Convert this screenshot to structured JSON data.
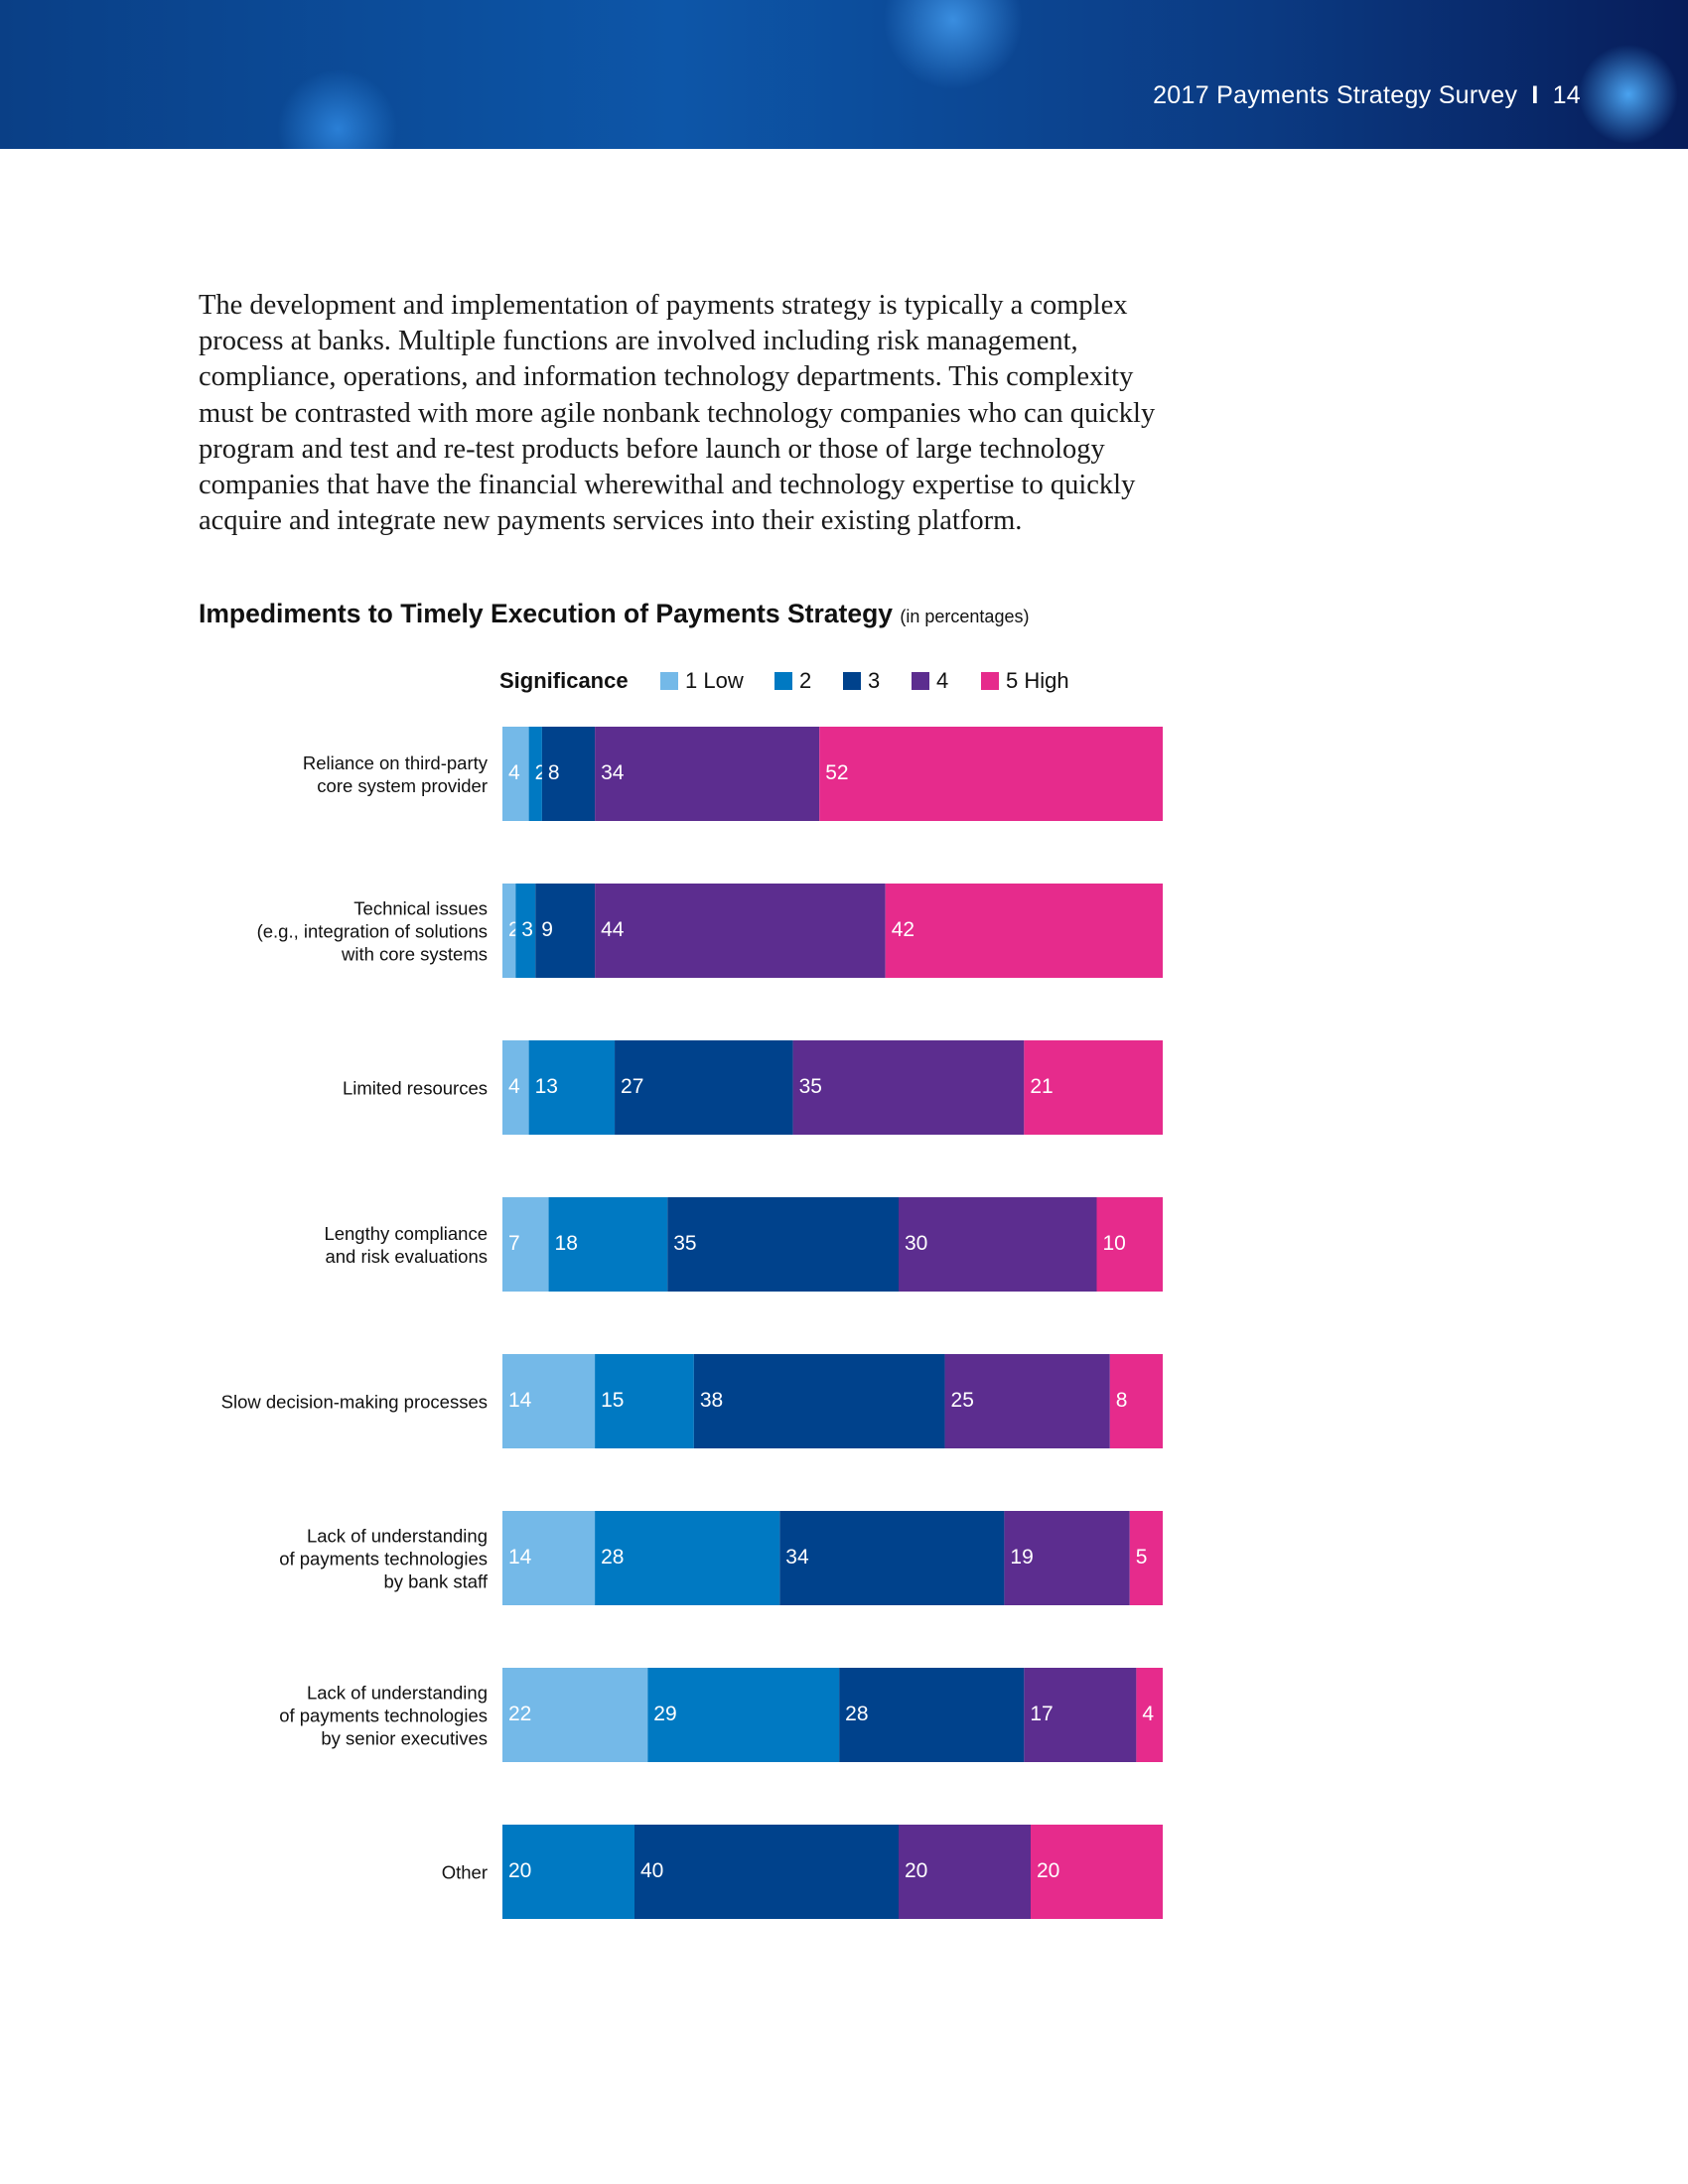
{
  "header": {
    "title": "2017 Payments Strategy Survey",
    "page": "14"
  },
  "paragraph": [
    "The development and implementation of payments strategy is typically a complex",
    "process at banks.  Multiple functions are involved including risk management,",
    "compliance, operations, and information technology departments.  This complexity",
    "must be contrasted with more agile nonbank technology companies who can quickly",
    "program and test and re-test products before launch or those of large technology",
    "companies that have the financial wherewithal and technology expertise to quickly",
    "acquire and integrate new payments services into their existing platform."
  ],
  "chart_data": {
    "type": "stacked_bar_horizontal",
    "title": "Impediments to Timely Execution of Payments Strategy",
    "subtitle": "(in percentages)",
    "legend_title": "Significance",
    "categories": [
      "Reliance on third-party\ncore system provider",
      "Technical issues\n(e.g., integration of solutions\nwith core systems",
      "Limited resources",
      "Lengthy compliance\nand risk evaluations",
      "Slow decision-making processes",
      "Lack of understanding\nof payments technologies\nby bank staff",
      "Lack of understanding\nof payments technologies\nby senior executives",
      "Other"
    ],
    "xlim": [
      0,
      100
    ],
    "series": [
      {
        "name": "1 Low",
        "color": "#74b9e8",
        "values": [
          4,
          2,
          4,
          7,
          14,
          14,
          22,
          null
        ]
      },
      {
        "name": "2",
        "color": "#0079c2",
        "values": [
          2,
          3,
          13,
          18,
          15,
          28,
          29,
          20
        ]
      },
      {
        "name": "3",
        "color": "#00428c",
        "values": [
          8,
          9,
          27,
          35,
          38,
          34,
          28,
          40
        ]
      },
      {
        "name": "4",
        "color": "#5c2d8f",
        "values": [
          34,
          44,
          35,
          30,
          25,
          19,
          17,
          20
        ]
      },
      {
        "name": "5 High",
        "color": "#e62b8c",
        "values": [
          52,
          42,
          21,
          10,
          8,
          5,
          4,
          20
        ]
      }
    ]
  }
}
